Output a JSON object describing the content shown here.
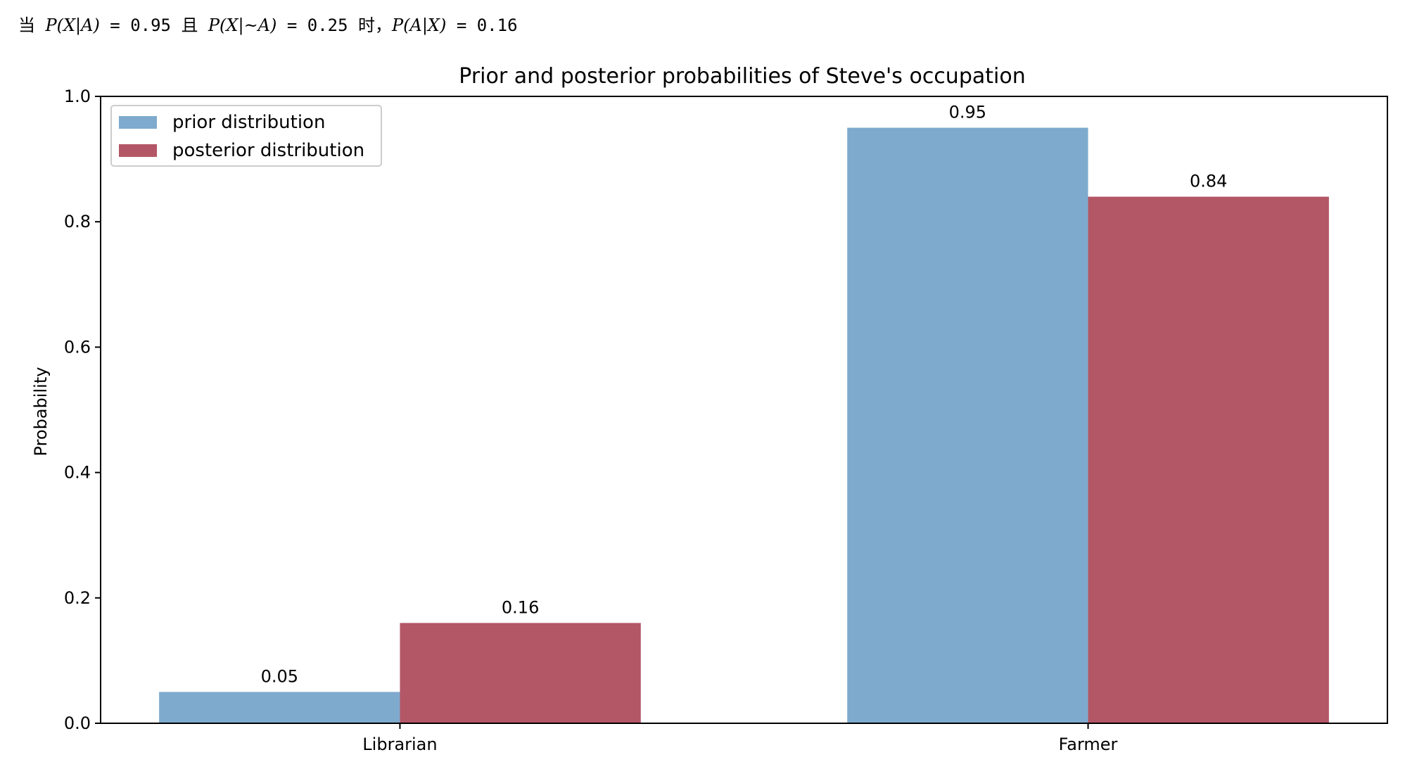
{
  "caption": {
    "p1_char": "当",
    "p1_expr": "P(X|A)",
    "p1_val": " = 0.95 ",
    "p2_char": "且",
    "p2_expr": "P(X|~A)",
    "p2_val": " = 0.25 ",
    "p3_char": "时，",
    "p3_expr": "P(A|X)",
    "p3_val": " = 0.16"
  },
  "chart_data": {
    "type": "bar",
    "title": "Prior and posterior probabilities of Steve's occupation",
    "xlabel": "",
    "ylabel": "Probability",
    "categories": [
      "Librarian",
      "Farmer"
    ],
    "series": [
      {
        "name": "prior distribution",
        "values": [
          0.05,
          0.95
        ],
        "labels": [
          "0.05",
          "0.95"
        ],
        "color": "#7eaacd"
      },
      {
        "name": "posterior distribution",
        "values": [
          0.16,
          0.84
        ],
        "labels": [
          "0.16",
          "0.84"
        ],
        "color": "#b35666"
      }
    ],
    "ylim": [
      0,
      1.0
    ],
    "yticks": [
      "0.0",
      "0.2",
      "0.4",
      "0.6",
      "0.8",
      "1.0"
    ],
    "grid": false,
    "legend": "upper left"
  }
}
